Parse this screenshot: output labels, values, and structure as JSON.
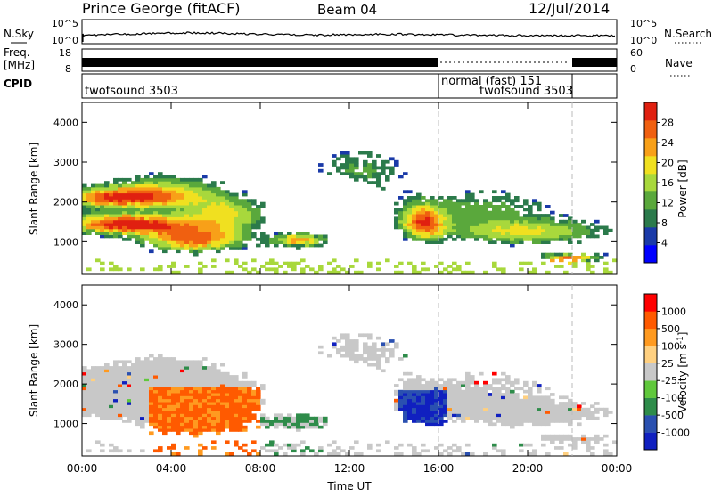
{
  "header": {
    "station": "Prince George (fitACF)",
    "beam": "Beam 04",
    "date": "12/Jul/2014"
  },
  "nsky_panel": {
    "left_label": "N.Sky",
    "right_label": "N.Search",
    "left_ticks": [
      "10^5",
      "10^0"
    ],
    "right_ticks": [
      "10^5",
      "10^0"
    ]
  },
  "freq_panel": {
    "left_label_1": "Freq.",
    "left_label_2": "[MHz]",
    "right_label": "Nave",
    "left_ticks": [
      "18",
      "8"
    ],
    "right_ticks": [
      "60",
      "0"
    ]
  },
  "cpid_panel": {
    "label": "CPID",
    "modes": [
      {
        "name": "twofsound 3503",
        "start_hour": 0,
        "end_hour": 16
      },
      {
        "name": "normal (fast) 151",
        "start_hour": 16,
        "end_hour": 22
      },
      {
        "name": "twofsound 3503",
        "start_hour": 16,
        "end_hour": 22
      }
    ]
  },
  "colors": {
    "power": [
      "#0000ff",
      "#1a3aa8",
      "#2b7a4b",
      "#5aa83c",
      "#a8d83c",
      "#f0e020",
      "#f8a018",
      "#f06010",
      "#e02010"
    ],
    "velocity": [
      "#ff0000",
      "#ff5a00",
      "#ff9a20",
      "#ffd080",
      "#c8c8c8",
      "#60c83c",
      "#2e8c4a",
      "#2a50b0",
      "#1020c0"
    ],
    "axis": "#000000",
    "dash": "#bbbbbb"
  },
  "chart_data": [
    {
      "type": "heatmap",
      "title": "Power",
      "ylabel": "Slant Range [km]",
      "xlabel": "Time UT",
      "xlim": [
        0,
        24
      ],
      "ylim": [
        180,
        4500
      ],
      "x_ticks": [
        "00:00",
        "04:00",
        "08:00",
        "12:00",
        "16:00",
        "20:00",
        "00:00"
      ],
      "y_ticks": [
        1000,
        2000,
        3000,
        4000
      ],
      "colorbar": {
        "label": "Power [dB]",
        "ticks": [
          "4",
          "8",
          "12",
          "16",
          "20",
          "24",
          "28"
        ],
        "range": [
          0,
          30
        ]
      },
      "cpid_boundaries_hours": [
        16,
        22
      ]
    },
    {
      "type": "heatmap",
      "title": "Velocity",
      "ylabel": "Slant Range [km]",
      "xlabel": "Time UT",
      "xlim": [
        0,
        24
      ],
      "ylim": [
        180,
        4500
      ],
      "x_ticks": [
        "00:00",
        "04:00",
        "08:00",
        "12:00",
        "16:00",
        "20:00",
        "00:00"
      ],
      "y_ticks": [
        1000,
        2000,
        3000,
        4000
      ],
      "colorbar": {
        "label": "Velocity [m s^-1]",
        "ticks": [
          "1000",
          "500",
          "100",
          "25",
          "-25",
          "-100",
          "-500",
          "-1000"
        ]
      },
      "cpid_boundaries_hours": [
        16,
        22
      ]
    }
  ],
  "x_axis_title": "Time UT"
}
